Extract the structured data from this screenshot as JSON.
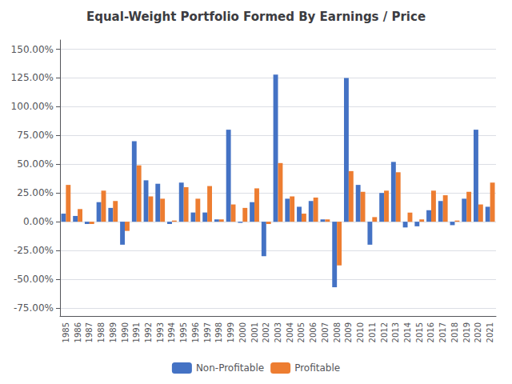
{
  "chart_data": {
    "type": "bar",
    "title": "Equal-Weight Portfolio Formed By Earnings / Price",
    "categories": [
      "1985",
      "1986",
      "1987",
      "1988",
      "1989",
      "1990",
      "1991",
      "1992",
      "1993",
      "1994",
      "1995",
      "1996",
      "1997",
      "1998",
      "1999",
      "2000",
      "2001",
      "2002",
      "2003",
      "2004",
      "2005",
      "2006",
      "2007",
      "2008",
      "2009",
      "2010",
      "2011",
      "2012",
      "2013",
      "2014",
      "2015",
      "2016",
      "2017",
      "2018",
      "2019",
      "2020",
      "2021"
    ],
    "series": [
      {
        "name": "Non-Profitable",
        "color": "#4472C4",
        "values": [
          0.07,
          0.05,
          -0.02,
          0.17,
          0.12,
          -0.2,
          0.7,
          0.36,
          0.33,
          -0.02,
          0.34,
          0.08,
          0.08,
          0.02,
          0.8,
          -0.01,
          0.17,
          -0.3,
          1.28,
          0.2,
          0.13,
          0.18,
          0.02,
          -0.57,
          1.25,
          0.32,
          -0.2,
          0.25,
          0.52,
          -0.05,
          -0.04,
          0.1,
          0.18,
          -0.03,
          0.2,
          0.8,
          0.13
        ]
      },
      {
        "name": "Profitable",
        "color": "#ED7D31",
        "values": [
          0.32,
          0.11,
          -0.02,
          0.27,
          0.18,
          -0.08,
          0.49,
          0.22,
          0.2,
          0.01,
          0.3,
          0.2,
          0.31,
          0.02,
          0.15,
          0.12,
          0.29,
          -0.02,
          0.51,
          0.22,
          0.07,
          0.21,
          0.02,
          -0.38,
          0.44,
          0.26,
          0.04,
          0.27,
          0.43,
          0.08,
          0.02,
          0.27,
          0.23,
          0.01,
          0.26,
          0.15,
          0.34
        ]
      }
    ],
    "ylim": [
      -0.82,
      1.58
    ],
    "yticks": [
      {
        "value": -0.75,
        "label": "-75.00%"
      },
      {
        "value": -0.5,
        "label": "-50.00%"
      },
      {
        "value": -0.25,
        "label": "-25.00%"
      },
      {
        "value": 0.0,
        "label": "0.00%"
      },
      {
        "value": 0.25,
        "label": "25.00%"
      },
      {
        "value": 0.5,
        "label": "50.00%"
      },
      {
        "value": 0.75,
        "label": "75.00%"
      },
      {
        "value": 1.0,
        "label": "100.00%"
      },
      {
        "value": 1.25,
        "label": "125.00%"
      },
      {
        "value": 1.5,
        "label": "150.00%"
      }
    ],
    "grid": true,
    "legend": "bottom"
  }
}
